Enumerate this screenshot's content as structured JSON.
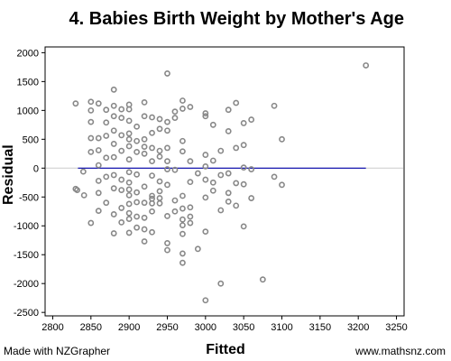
{
  "chart_data": {
    "type": "scatter",
    "title": "4. Babies Birth Weight by Mother's Age",
    "xlabel": "Fitted",
    "ylabel": "Residual",
    "xlim": [
      2790,
      3260
    ],
    "ylim": [
      -2560,
      2100
    ],
    "xticks": [
      2800,
      2850,
      2900,
      2950,
      3000,
      3050,
      3100,
      3150,
      3200,
      3250
    ],
    "yticks": [
      2000,
      1500,
      1000,
      500,
      0,
      -500,
      -1000,
      -1500,
      -2000,
      -2500
    ],
    "grid": false,
    "zero_line": {
      "y": 0,
      "color": "#cccccc"
    },
    "point_color": "#888888",
    "fit_line": {
      "color": "#0000aa",
      "points": [
        [
          2833,
          0
        ],
        [
          3175,
          0
        ],
        [
          3210,
          0
        ]
      ]
    },
    "points": [
      [
        2830,
        1120
      ],
      [
        2830,
        -360
      ],
      [
        2832,
        -380
      ],
      [
        2840,
        -60
      ],
      [
        2841,
        -470
      ],
      [
        2850,
        1150
      ],
      [
        2850,
        1000
      ],
      [
        2850,
        800
      ],
      [
        2850,
        520
      ],
      [
        2850,
        280
      ],
      [
        2850,
        -950
      ],
      [
        2860,
        1120
      ],
      [
        2860,
        520
      ],
      [
        2860,
        310
      ],
      [
        2860,
        50
      ],
      [
        2860,
        -220
      ],
      [
        2860,
        -430
      ],
      [
        2860,
        -740
      ],
      [
        2870,
        1010
      ],
      [
        2870,
        790
      ],
      [
        2870,
        560
      ],
      [
        2870,
        180
      ],
      [
        2870,
        -150
      ],
      [
        2870,
        -600
      ],
      [
        2880,
        1360
      ],
      [
        2880,
        1080
      ],
      [
        2880,
        900
      ],
      [
        2880,
        650
      ],
      [
        2880,
        420
      ],
      [
        2880,
        190
      ],
      [
        2880,
        -120
      ],
      [
        2880,
        -350
      ],
      [
        2880,
        -800
      ],
      [
        2880,
        -1130
      ],
      [
        2890,
        1020
      ],
      [
        2890,
        870
      ],
      [
        2890,
        570
      ],
      [
        2890,
        300
      ],
      [
        2890,
        -200
      ],
      [
        2890,
        -380
      ],
      [
        2890,
        -690
      ],
      [
        2890,
        -940
      ],
      [
        2900,
        1100
      ],
      [
        2900,
        1020
      ],
      [
        2900,
        820
      ],
      [
        2900,
        600
      ],
      [
        2900,
        500
      ],
      [
        2900,
        380
      ],
      [
        2900,
        150
      ],
      [
        2900,
        -70
      ],
      [
        2900,
        -250
      ],
      [
        2900,
        -370
      ],
      [
        2900,
        -470
      ],
      [
        2900,
        -620
      ],
      [
        2900,
        -780
      ],
      [
        2900,
        -880
      ],
      [
        2900,
        -1120
      ],
      [
        2910,
        720
      ],
      [
        2910,
        470
      ],
      [
        2910,
        280
      ],
      [
        2910,
        -110
      ],
      [
        2910,
        -420
      ],
      [
        2910,
        -590
      ],
      [
        2910,
        -840
      ],
      [
        2910,
        -1030
      ],
      [
        2920,
        1140
      ],
      [
        2920,
        900
      ],
      [
        2920,
        500
      ],
      [
        2920,
        370
      ],
      [
        2920,
        250
      ],
      [
        2920,
        -320
      ],
      [
        2920,
        -600
      ],
      [
        2920,
        -860
      ],
      [
        2920,
        -1060
      ],
      [
        2920,
        -1270
      ],
      [
        2930,
        880
      ],
      [
        2930,
        610
      ],
      [
        2930,
        350
      ],
      [
        2930,
        120
      ],
      [
        2930,
        -130
      ],
      [
        2930,
        -480
      ],
      [
        2930,
        -530
      ],
      [
        2930,
        -610
      ],
      [
        2930,
        -750
      ],
      [
        2930,
        -1110
      ],
      [
        2940,
        850
      ],
      [
        2940,
        680
      ],
      [
        2940,
        300
      ],
      [
        2940,
        200
      ],
      [
        2940,
        -230
      ],
      [
        2940,
        -400
      ],
      [
        2940,
        -520
      ],
      [
        2940,
        -610
      ],
      [
        2950,
        1640
      ],
      [
        2950,
        800
      ],
      [
        2950,
        650
      ],
      [
        2950,
        350
      ],
      [
        2950,
        120
      ],
      [
        2950,
        -20
      ],
      [
        2950,
        -290
      ],
      [
        2950,
        -830
      ],
      [
        2950,
        -1300
      ],
      [
        2950,
        -1420
      ],
      [
        2960,
        980
      ],
      [
        2960,
        870
      ],
      [
        2960,
        -30
      ],
      [
        2960,
        -560
      ],
      [
        2960,
        -750
      ],
      [
        2970,
        1170
      ],
      [
        2970,
        1030
      ],
      [
        2970,
        470
      ],
      [
        2970,
        290
      ],
      [
        2970,
        -480
      ],
      [
        2970,
        -700
      ],
      [
        2970,
        -890
      ],
      [
        2970,
        -990
      ],
      [
        2970,
        -1140
      ],
      [
        2970,
        -1480
      ],
      [
        2970,
        -1640
      ],
      [
        2980,
        1060
      ],
      [
        2980,
        120
      ],
      [
        2980,
        -240
      ],
      [
        2980,
        -680
      ],
      [
        2980,
        -840
      ],
      [
        2980,
        -950
      ],
      [
        2990,
        -90
      ],
      [
        2990,
        -1400
      ],
      [
        3000,
        950
      ],
      [
        3000,
        900
      ],
      [
        3000,
        230
      ],
      [
        3000,
        30
      ],
      [
        3000,
        -200
      ],
      [
        3000,
        -510
      ],
      [
        3000,
        -1100
      ],
      [
        3000,
        -2290
      ],
      [
        3010,
        750
      ],
      [
        3010,
        130
      ],
      [
        3010,
        -250
      ],
      [
        3010,
        -390
      ],
      [
        3020,
        300
      ],
      [
        3020,
        -120
      ],
      [
        3020,
        -730
      ],
      [
        3020,
        -2000
      ],
      [
        3030,
        1010
      ],
      [
        3030,
        640
      ],
      [
        3030,
        -90
      ],
      [
        3030,
        -430
      ],
      [
        3030,
        -580
      ],
      [
        3040,
        1130
      ],
      [
        3040,
        350
      ],
      [
        3040,
        -260
      ],
      [
        3040,
        -650
      ],
      [
        3050,
        780
      ],
      [
        3050,
        400
      ],
      [
        3050,
        10
      ],
      [
        3050,
        -280
      ],
      [
        3050,
        -1010
      ],
      [
        3060,
        840
      ],
      [
        3060,
        -20
      ],
      [
        3060,
        -520
      ],
      [
        3075,
        -1930
      ],
      [
        3090,
        1080
      ],
      [
        3090,
        -150
      ],
      [
        3100,
        500
      ],
      [
        3100,
        -290
      ],
      [
        3210,
        1780
      ]
    ]
  }
}
